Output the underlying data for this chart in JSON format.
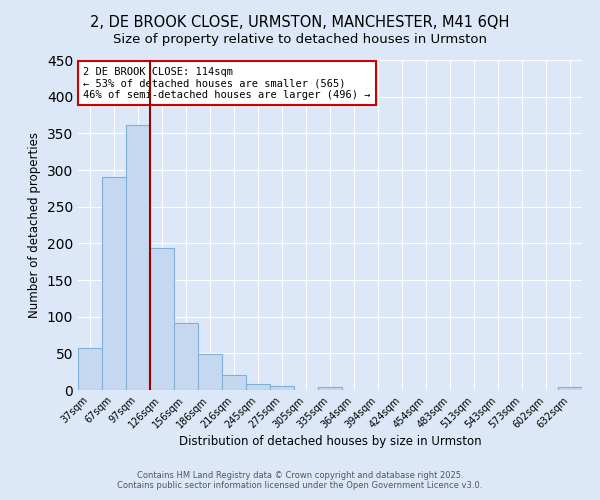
{
  "title1": "2, DE BROOK CLOSE, URMSTON, MANCHESTER, M41 6QH",
  "title2": "Size of property relative to detached houses in Urmston",
  "xlabel": "Distribution of detached houses by size in Urmston",
  "ylabel": "Number of detached properties",
  "categories": [
    "37sqm",
    "67sqm",
    "97sqm",
    "126sqm",
    "156sqm",
    "186sqm",
    "216sqm",
    "245sqm",
    "275sqm",
    "305sqm",
    "335sqm",
    "364sqm",
    "394sqm",
    "424sqm",
    "454sqm",
    "483sqm",
    "513sqm",
    "543sqm",
    "573sqm",
    "602sqm",
    "632sqm"
  ],
  "values": [
    57,
    291,
    362,
    193,
    92,
    49,
    20,
    8,
    5,
    0,
    4,
    0,
    0,
    0,
    0,
    0,
    0,
    0,
    0,
    0,
    4
  ],
  "bar_color": "#c5d8f0",
  "bar_edge_color": "#7eb0d9",
  "bg_color": "#dce8f8",
  "grid_color": "#ffffff",
  "vline_x_index": 2.5,
  "vline_color": "#990000",
  "annotation_text": "2 DE BROOK CLOSE: 114sqm\n← 53% of detached houses are smaller (565)\n46% of semi-detached houses are larger (496) →",
  "annotation_box_color": "#ffffff",
  "annotation_border_color": "#cc0000",
  "footer1": "Contains HM Land Registry data © Crown copyright and database right 2025.",
  "footer2": "Contains public sector information licensed under the Open Government Licence v3.0.",
  "ylim": [
    0,
    450
  ],
  "title_fontsize": 10.5,
  "subtitle_fontsize": 9.5,
  "tick_fontsize": 7,
  "ylabel_fontsize": 8.5,
  "xlabel_fontsize": 8.5,
  "annotation_fontsize": 7.5,
  "footer_fontsize": 6
}
